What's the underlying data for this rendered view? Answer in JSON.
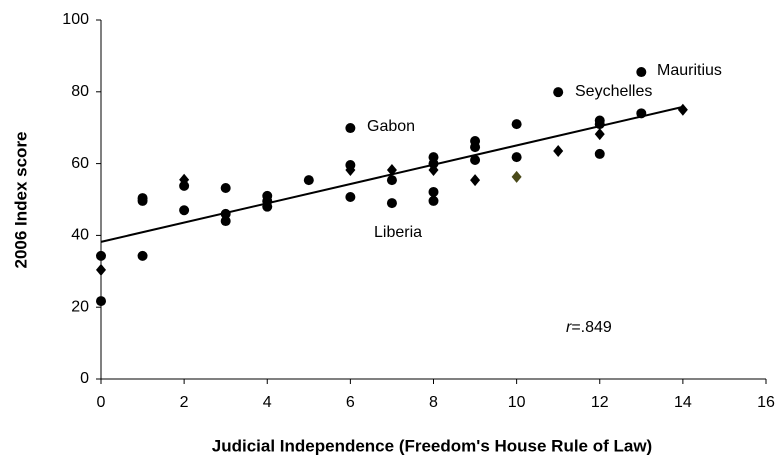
{
  "chart_data": {
    "type": "scatter",
    "x_label": "Judicial Independence (Freedom's House Rule of Law)",
    "y_label": "2006 Index score",
    "xlim": [
      0,
      16
    ],
    "xticks": [
      0,
      2,
      4,
      6,
      8,
      10,
      12,
      14,
      16
    ],
    "ylim": [
      0,
      100
    ],
    "yticks": [
      0,
      20,
      40,
      60,
      80,
      100
    ],
    "grid": false,
    "series": [
      {
        "marker": "circle",
        "color": "#000000",
        "x": [
          0,
          0,
          1,
          1,
          1,
          2,
          2,
          3,
          3,
          3,
          4,
          4,
          4,
          5,
          6,
          6,
          6,
          7,
          7,
          8,
          8,
          8,
          8,
          9,
          9,
          9,
          10,
          10,
          11,
          12,
          12,
          12,
          13,
          13
        ],
        "values": [
          34.3,
          21.7,
          50.4,
          49.6,
          34.3,
          53.8,
          47,
          53.2,
          46,
          44,
          51,
          49.5,
          48,
          55.4,
          69.9,
          59.6,
          50.7,
          55.4,
          49,
          61.8,
          60,
          52.1,
          49.6,
          66.3,
          64.6,
          61,
          71,
          61.8,
          79.9,
          72,
          71,
          62.7,
          85.5,
          74
        ]
      },
      {
        "marker": "diamond",
        "color": "#000000",
        "x": [
          0,
          2,
          6,
          7,
          8,
          9,
          11,
          12,
          14
        ],
        "values": [
          30.4,
          55.5,
          58.2,
          58.2,
          58.2,
          55.4,
          63.5,
          68.2,
          75
        ]
      },
      {
        "marker": "diamond",
        "color": "#4a4a1a",
        "x": [
          10
        ],
        "values": [
          56.3
        ]
      }
    ],
    "trendline": {
      "color": "#000000",
      "x": [
        0,
        14
      ],
      "values": [
        38.2,
        75.8
      ]
    },
    "annotations": [
      "Gabon",
      "Liberia",
      "Seychelles",
      "Mauritius"
    ],
    "r_label": {
      "symbol": "r",
      "text": "=.849"
    }
  }
}
